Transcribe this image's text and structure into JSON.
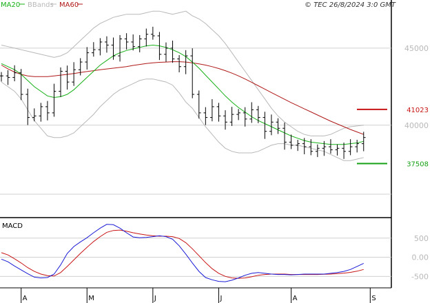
{
  "header": {
    "legend": [
      {
        "label": "MA20",
        "color": "#16b016"
      },
      {
        "label": "BBands",
        "color": "#b8b8b8"
      },
      {
        "label": "MA60",
        "color": "#b01818"
      }
    ],
    "copyright": "© TEC 26/8/2024 3:0 GMT"
  },
  "price_panel": {
    "y_ticks": [
      {
        "value": 45000,
        "label": "45000"
      },
      {
        "value": 40000,
        "label": "40000"
      }
    ],
    "ylim": [
      34000,
      47500
    ],
    "levels": [
      {
        "value": 41023,
        "label": "41023",
        "color": "#c81414"
      },
      {
        "value": 37508,
        "label": "37508",
        "color": "#14a014"
      }
    ]
  },
  "macd_panel": {
    "title": "MACD",
    "y_ticks": [
      {
        "value": 500,
        "label": "500"
      },
      {
        "value": 0,
        "label": "0.00"
      },
      {
        "value": -500,
        "label": "-500"
      }
    ],
    "ylim": [
      -800,
      1000
    ]
  },
  "x_axis": {
    "months": [
      {
        "label": "A",
        "day": 3
      },
      {
        "label": "M",
        "day": 13
      },
      {
        "label": "J",
        "day": 23
      },
      {
        "label": "J",
        "day": 33
      },
      {
        "label": "A",
        "day": 44
      },
      {
        "label": "S",
        "day": 56
      }
    ]
  },
  "chart_data": {
    "type": "line",
    "x": [
      0,
      1,
      2,
      3,
      4,
      5,
      6,
      7,
      8,
      9,
      10,
      11,
      12,
      13,
      14,
      15,
      16,
      17,
      18,
      19,
      20,
      21,
      22,
      23,
      24,
      25,
      26,
      27,
      28,
      29,
      30,
      31,
      32,
      33,
      34,
      35,
      36,
      37,
      38,
      39,
      40,
      41,
      42,
      43,
      44,
      45,
      46,
      47,
      48,
      49,
      50,
      51,
      52,
      53,
      54,
      55
    ],
    "xlim": [
      0,
      59
    ],
    "series": [
      {
        "name": "Close",
        "kind": "ohlc",
        "values": [
          43200,
          43100,
          43400,
          42000,
          40500,
          40600,
          41200,
          40800,
          42200,
          43500,
          42800,
          43600,
          44100,
          44700,
          44900,
          45400,
          45200,
          44500,
          45600,
          45400,
          45100,
          45600,
          45900,
          45800,
          44600,
          45000,
          44300,
          43800,
          44500,
          42000,
          40800,
          40500,
          41200,
          40600,
          40200,
          40700,
          40800,
          40400,
          41000,
          40500,
          39600,
          40200,
          39800,
          38900,
          38700,
          38800,
          38600,
          38300,
          38500,
          38600,
          38400,
          38500,
          38300,
          38600,
          38800,
          39200
        ]
      },
      {
        "name": "MA20",
        "values": [
          44000,
          43800,
          43600,
          43300,
          42900,
          42500,
          42200,
          41900,
          41800,
          41850,
          42000,
          42300,
          42700,
          43100,
          43500,
          43900,
          44200,
          44500,
          44700,
          44850,
          44950,
          45050,
          45150,
          45200,
          45150,
          45050,
          44900,
          44700,
          44450,
          44100,
          43700,
          43250,
          42800,
          42350,
          41900,
          41500,
          41150,
          40850,
          40550,
          40300,
          40100,
          39900,
          39700,
          39500,
          39300,
          39150,
          39000,
          38900,
          38850,
          38800,
          38750,
          38750,
          38750,
          38800,
          38850,
          38950
        ]
      },
      {
        "name": "MA60",
        "values": [
          43900,
          43650,
          43450,
          43300,
          43200,
          43150,
          43150,
          43150,
          43200,
          43250,
          43300,
          43350,
          43420,
          43480,
          43540,
          43600,
          43650,
          43700,
          43750,
          43800,
          43880,
          43940,
          44000,
          44050,
          44080,
          44100,
          44120,
          44120,
          44100,
          44050,
          43980,
          43900,
          43800,
          43680,
          43540,
          43380,
          43200,
          43000,
          42780,
          42560,
          42340,
          42120,
          41900,
          41680,
          41460,
          41260,
          41060,
          40860,
          40660,
          40460,
          40260,
          40080,
          39900,
          39720,
          39560,
          39400
        ]
      },
      {
        "name": "BB Upper",
        "values": [
          45200,
          45100,
          45000,
          44900,
          44800,
          44700,
          44600,
          44500,
          44400,
          44500,
          44700,
          45100,
          45500,
          45900,
          46300,
          46600,
          46800,
          47000,
          47100,
          47200,
          47200,
          47200,
          47300,
          47400,
          47400,
          47300,
          47200,
          47300,
          47400,
          47100,
          46900,
          46600,
          46200,
          45800,
          45300,
          44700,
          44100,
          43500,
          42900,
          42300,
          41700,
          41100,
          40600,
          40200,
          39900,
          39600,
          39400,
          39300,
          39300,
          39300,
          39400,
          39600,
          39800,
          39900,
          39950,
          40000
        ]
      },
      {
        "name": "BB Lower",
        "values": [
          42800,
          42500,
          42200,
          41700,
          41000,
          40300,
          39800,
          39300,
          39200,
          39200,
          39300,
          39500,
          39900,
          40300,
          40700,
          41200,
          41600,
          42000,
          42300,
          42500,
          42700,
          42900,
          43000,
          43000,
          42900,
          42800,
          42600,
          42100,
          41500,
          41100,
          40500,
          39900,
          39400,
          38900,
          38500,
          38300,
          38200,
          38200,
          38200,
          38300,
          38500,
          38700,
          38800,
          38800,
          38700,
          38700,
          38600,
          38500,
          38400,
          38300,
          38100,
          37900,
          37700,
          37700,
          37800,
          37900
        ]
      },
      {
        "name": "MACD",
        "values": [
          -50,
          -120,
          -230,
          -330,
          -430,
          -520,
          -540,
          -530,
          -440,
          -200,
          100,
          280,
          400,
          510,
          640,
          760,
          860,
          850,
          760,
          640,
          530,
          510,
          520,
          540,
          560,
          540,
          470,
          300,
          80,
          -150,
          -370,
          -530,
          -590,
          -630,
          -640,
          -600,
          -540,
          -470,
          -420,
          -400,
          -420,
          -440,
          -450,
          -450,
          -460,
          -450,
          -440,
          -440,
          -440,
          -440,
          -420,
          -400,
          -370,
          -320,
          -240,
          -160
        ]
      },
      {
        "name": "Signal",
        "values": [
          120,
          60,
          -40,
          -150,
          -270,
          -370,
          -440,
          -480,
          -490,
          -400,
          -240,
          -70,
          100,
          260,
          410,
          540,
          650,
          700,
          710,
          680,
          640,
          610,
          580,
          560,
          550,
          550,
          540,
          490,
          380,
          220,
          40,
          -140,
          -300,
          -420,
          -500,
          -540,
          -550,
          -540,
          -510,
          -470,
          -450,
          -440,
          -440,
          -440,
          -450,
          -450,
          -450,
          -450,
          -450,
          -445,
          -440,
          -430,
          -415,
          -395,
          -365,
          -320
        ]
      }
    ]
  }
}
